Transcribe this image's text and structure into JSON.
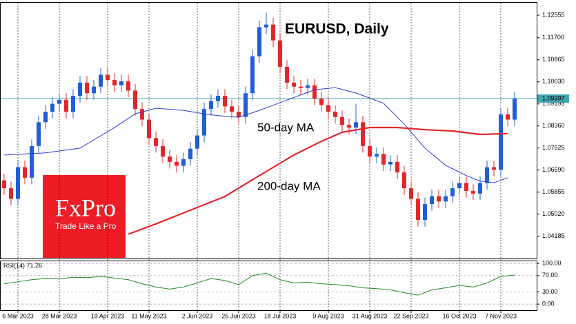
{
  "chart_data": {
    "type": "candlestick",
    "title": "EURUSD, Daily",
    "categories": [
      null,
      null,
      "6 Mar 2023",
      null,
      null,
      null,
      null,
      null,
      "28 Mar 2023",
      null,
      null,
      null,
      null,
      null,
      null,
      "19 Apr 2023",
      null,
      null,
      null,
      null,
      null,
      "11 May 2023",
      null,
      null,
      null,
      null,
      null,
      null,
      "2 Jun 2023",
      null,
      null,
      null,
      null,
      null,
      "26 Jun 2023",
      null,
      null,
      null,
      null,
      null,
      "18 Jul 2023",
      null,
      null,
      null,
      null,
      null,
      null,
      "9 Aug 2023",
      null,
      null,
      null,
      null,
      null,
      "31 Aug 2023",
      null,
      null,
      null,
      null,
      null,
      "22 Sep 2023",
      null,
      null,
      null,
      null,
      null,
      null,
      "16 Oct 2023",
      null,
      null,
      null,
      null,
      null,
      "7 Nov 2023",
      null,
      null
    ],
    "open": [
      1.063,
      1.06,
      1.056,
      1.068,
      1.064,
      1.076,
      1.085,
      1.089,
      1.092,
      1.0935,
      1.089,
      1.095,
      1.1,
      1.096,
      1.0985,
      1.103,
      1.101,
      1.099,
      1.1005,
      1.097,
      1.09,
      1.086,
      1.079,
      1.076,
      1.072,
      1.07,
      1.0685,
      1.071,
      1.075,
      1.08,
      1.09,
      1.093,
      1.095,
      1.091,
      1.089,
      1.087,
      1.096,
      1.11,
      1.121,
      1.122,
      1.116,
      1.106,
      1.1,
      1.0985,
      1.098,
      1.099,
      1.094,
      1.0915,
      1.089,
      1.087,
      1.084,
      1.083,
      1.085,
      1.076,
      1.072,
      1.073,
      1.069,
      1.07,
      1.066,
      1.06,
      1.056,
      1.048,
      1.054,
      1.057,
      1.055,
      1.057,
      1.06,
      1.062,
      1.059,
      1.058,
      1.062,
      1.068,
      1.067,
      1.088,
      1.086
    ],
    "high": [
      1.0655,
      1.0625,
      1.0705,
      1.0705,
      1.0785,
      1.0875,
      1.0915,
      1.0945,
      1.096,
      1.096,
      1.0975,
      1.1025,
      1.1025,
      1.101,
      1.1055,
      1.1055,
      1.1035,
      1.103,
      1.103,
      1.0995,
      1.0925,
      1.0885,
      1.0815,
      1.0785,
      1.0745,
      1.0725,
      1.0735,
      1.0775,
      1.0825,
      1.0925,
      1.0955,
      1.0975,
      1.0975,
      1.0935,
      1.0915,
      1.0985,
      1.1125,
      1.1235,
      1.1265,
      1.1245,
      1.1185,
      1.1085,
      1.1025,
      1.101,
      1.1015,
      1.1015,
      1.0965,
      1.094,
      1.0915,
      1.0895,
      1.0865,
      1.092,
      1.0875,
      1.0785,
      1.0755,
      1.0755,
      1.0725,
      1.0725,
      1.0685,
      1.0625,
      1.0585,
      1.0565,
      1.0595,
      1.0595,
      1.0595,
      1.0625,
      1.0645,
      1.0645,
      1.0615,
      1.0645,
      1.0705,
      1.0705,
      1.0905,
      1.0905,
      1.0965
    ],
    "low": [
      1.0575,
      1.0535,
      1.0535,
      1.0615,
      1.0615,
      1.0735,
      1.0825,
      1.0865,
      1.0895,
      1.0865,
      1.0865,
      1.0925,
      1.0935,
      1.0935,
      1.096,
      1.0985,
      1.0965,
      1.0965,
      1.0945,
      1.0875,
      1.0835,
      1.0765,
      1.0735,
      1.0695,
      1.0675,
      1.066,
      1.066,
      1.0685,
      1.0725,
      1.0775,
      1.0875,
      1.0905,
      1.0885,
      1.0865,
      1.0845,
      1.0845,
      1.0935,
      1.1075,
      1.1185,
      1.1135,
      1.1035,
      1.0975,
      1.096,
      1.0955,
      1.0955,
      1.0915,
      1.089,
      1.0865,
      1.0845,
      1.0815,
      1.0805,
      1.0805,
      1.0735,
      1.0695,
      1.0695,
      1.0665,
      1.0665,
      1.0635,
      1.0575,
      1.0535,
      1.0455,
      1.0455,
      1.0515,
      1.0525,
      1.0525,
      1.0545,
      1.0575,
      1.0565,
      1.0555,
      1.0555,
      1.0595,
      1.0645,
      1.0645,
      1.0835,
      1.0835
    ],
    "close": [
      1.06,
      1.056,
      1.068,
      1.064,
      1.076,
      1.085,
      1.089,
      1.092,
      1.0935,
      1.089,
      1.095,
      1.1,
      1.096,
      1.0985,
      1.103,
      1.101,
      1.099,
      1.1005,
      1.097,
      1.09,
      1.086,
      1.079,
      1.076,
      1.072,
      1.07,
      1.0685,
      1.071,
      1.075,
      1.08,
      1.09,
      1.093,
      1.095,
      1.091,
      1.089,
      1.087,
      1.096,
      1.11,
      1.121,
      1.122,
      1.116,
      1.106,
      1.1,
      1.0985,
      1.098,
      1.099,
      1.094,
      1.0915,
      1.089,
      1.087,
      1.084,
      1.083,
      1.085,
      1.076,
      1.072,
      1.073,
      1.069,
      1.07,
      1.066,
      1.06,
      1.056,
      1.048,
      1.054,
      1.057,
      1.055,
      1.057,
      1.06,
      1.062,
      1.059,
      1.058,
      1.062,
      1.068,
      1.067,
      1.088,
      1.086,
      1.094
    ],
    "up_color": "#1f5ed8",
    "down_color": "#e3262b",
    "ylim": [
      1.0334,
      1.13
    ],
    "yticks": [
      1.12555,
      {
        "value": 1.117,
        "label": "1.11700"
      },
      1.10865,
      {
        "value": 1.1003,
        "label": "1.10030"
      },
      1.09195,
      {
        "value": 1.0836,
        "label": "1.08360"
      },
      1.07525,
      {
        "value": 1.0669,
        "label": "1.06690"
      },
      1.05855,
      {
        "value": 1.0502,
        "label": "1.05020"
      },
      1.04185
    ],
    "last_price": 1.09397,
    "last_price_color": "#3fa7b4",
    "lines": [
      {
        "name": "50-day MA",
        "color": "#2b3bd0",
        "x": [
          0,
          6,
          11,
          16,
          19,
          22,
          26,
          29,
          31,
          34,
          37,
          41,
          45,
          48,
          51,
          55,
          58,
          61,
          64,
          67,
          69,
          71,
          73
        ],
        "values": [
          1.0726,
          1.0734,
          1.0752,
          1.083,
          1.0882,
          1.0903,
          1.0895,
          1.0882,
          1.0875,
          1.0869,
          1.0895,
          1.0934,
          1.0973,
          1.0981,
          1.0961,
          1.0922,
          1.0843,
          1.0752,
          1.0687,
          1.0648,
          1.0627,
          1.0621,
          1.064
        ]
      },
      {
        "name": "200-day MA",
        "color": "#e3262b",
        "x": [
          18,
          22,
          27,
          32,
          37,
          42,
          46,
          49,
          53,
          57,
          61,
          65,
          69,
          73
        ],
        "values": [
          1.0426,
          1.0465,
          1.0517,
          1.0569,
          1.0648,
          1.0726,
          1.0778,
          1.0812,
          1.083,
          1.083,
          1.0822,
          1.0817,
          1.0804,
          1.0807
        ]
      }
    ],
    "logo": {
      "brand": "FxPro",
      "tagline": "Trade Like a Pro",
      "color": "#ee1c25"
    },
    "rsi": {
      "name": "RSI(14)",
      "color": "#1f8a1f",
      "x": [
        0,
        2,
        4,
        6,
        8,
        10,
        12,
        14,
        16,
        18,
        20,
        22,
        24,
        26,
        28,
        30,
        32,
        34,
        36,
        38,
        40,
        42,
        44,
        46,
        48,
        50,
        52,
        54,
        56,
        58,
        60,
        62,
        64,
        66,
        68,
        70,
        72,
        74
      ],
      "values": [
        50,
        55,
        60,
        63,
        62,
        66,
        65,
        68,
        64,
        60,
        50,
        42,
        37,
        42,
        52,
        63,
        58,
        48,
        70,
        76,
        60,
        52,
        54,
        50,
        48,
        45,
        40,
        38,
        35,
        28,
        22,
        35,
        40,
        46,
        42,
        52,
        68,
        71.26
      ],
      "ylim": [
        -15,
        107
      ],
      "yticks": [
        {
          "value": 100,
          "label": "100.00"
        },
        {
          "value": 70,
          "label": "70.00"
        },
        {
          "value": 30,
          "label": "30.00"
        },
        {
          "value": 0,
          "label": "0.00"
        }
      ]
    }
  }
}
